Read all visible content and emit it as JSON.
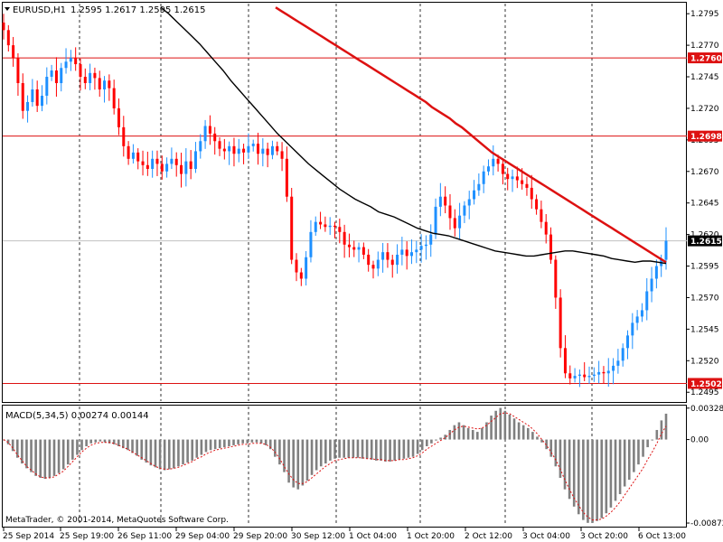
{
  "header": {
    "symbol": "EURUSD,H1",
    "ohlc": "1.2595 1.2617 1.2595 1.2615"
  },
  "copyright": "MetaTrader, © 2001-2014, MetaQuotes Software Corp.",
  "colors": {
    "bull": "#1e90ff",
    "bear": "#ff0000",
    "ma_slow": "#dd1111",
    "ma_fast": "#000000",
    "level_line": "#dd1111",
    "grid": "#000000",
    "histogram": "#808080",
    "signal": "#dd1111",
    "current_tag": "#000000"
  },
  "chart_data": {
    "type": "candlestick",
    "price_axis": {
      "min": 1.2488,
      "max": 1.2803,
      "ticks": [
        "1.2795",
        "1.2770",
        "1.2745",
        "1.2720",
        "1.2695",
        "1.2670",
        "1.2645",
        "1.2620",
        "1.2595",
        "1.2570",
        "1.2545",
        "1.2520",
        "1.2495"
      ]
    },
    "time_axis": {
      "labels": [
        "25 Sep 2014",
        "25 Sep 19:00",
        "26 Sep 11:00",
        "29 Sep 04:00",
        "29 Sep 20:00",
        "30 Sep 12:00",
        "1 Oct 04:00",
        "1 Oct 20:00",
        "2 Oct 12:00",
        "3 Oct 04:00",
        "3 Oct 20:00",
        "6 Oct 13:00"
      ]
    },
    "price_levels": [
      {
        "value": 1.276,
        "label": "1.2760"
      },
      {
        "value": 1.2698,
        "label": "1.2698"
      },
      {
        "value": 1.2502,
        "label": "1.2502"
      }
    ],
    "current_price": {
      "value": 1.2615,
      "label": "1.2615"
    },
    "closes": [
      1.2782,
      1.277,
      1.276,
      1.274,
      1.2718,
      1.2725,
      1.2735,
      1.2722,
      1.273,
      1.2745,
      1.275,
      1.274,
      1.2752,
      1.2757,
      1.276,
      1.2755,
      1.2745,
      1.274,
      1.2748,
      1.2744,
      1.2735,
      1.2742,
      1.2736,
      1.272,
      1.2705,
      1.269,
      1.268,
      1.2685,
      1.2678,
      1.2675,
      1.2672,
      1.268,
      1.2676,
      1.267,
      1.2676,
      1.268,
      1.2675,
      1.2668,
      1.2678,
      1.2672,
      1.2686,
      1.2694,
      1.2706,
      1.27,
      1.2694,
      1.2688,
      1.2686,
      1.269,
      1.2684,
      1.2688,
      1.2685,
      1.269,
      1.2692,
      1.2684,
      1.2688,
      1.2683,
      1.269,
      1.2686,
      1.268,
      1.265,
      1.26,
      1.259,
      1.2585,
      1.2602,
      1.2622,
      1.263,
      1.2628,
      1.2626,
      1.2627,
      1.2626,
      1.2622,
      1.2612,
      1.261,
      1.2608,
      1.261,
      1.2604,
      1.2596,
      1.2593,
      1.26,
      1.2606,
      1.26,
      1.2596,
      1.2604,
      1.2608,
      1.2603,
      1.2606,
      1.2608,
      1.2611,
      1.2612,
      1.262,
      1.2642,
      1.265,
      1.2643,
      1.2633,
      1.2625,
      1.2635,
      1.2643,
      1.2648,
      1.2655,
      1.266,
      1.267,
      1.2674,
      1.268,
      1.2676,
      1.2668,
      1.2664,
      1.2666,
      1.2663,
      1.266,
      1.2657,
      1.2648,
      1.264,
      1.263,
      1.262,
      1.26,
      1.257,
      1.253,
      1.251,
      1.2506,
      1.2508,
      1.2509,
      1.2507,
      1.2508,
      1.2509,
      1.2511,
      1.251,
      1.2512,
      1.2516,
      1.252,
      1.253,
      1.254,
      1.255,
      1.2555,
      1.256,
      1.2575,
      1.2585,
      1.2595,
      1.26,
      1.2615
    ],
    "ma_fast": [
      1.28,
      1.2795,
      1.2789,
      1.2783,
      1.2777,
      1.2771,
      1.2764,
      1.2757,
      1.275,
      1.2742,
      1.2735,
      1.2728,
      1.2721,
      1.2714,
      1.2707,
      1.27,
      1.2694,
      1.2688,
      1.2682,
      1.2676,
      1.2671,
      1.2666,
      1.2661,
      1.2656,
      1.2652,
      1.2648,
      1.2645,
      1.2642,
      1.2638,
      1.2636,
      1.2634,
      1.2631,
      1.2628,
      1.2625,
      1.2623,
      1.2621,
      1.262,
      1.2619,
      1.2617,
      1.2615,
      1.2613,
      1.2611,
      1.2609,
      1.2607,
      1.2606,
      1.2605,
      1.2604,
      1.2603,
      1.2603,
      1.2604,
      1.2605,
      1.2606,
      1.2607,
      1.2607,
      1.2606,
      1.2605,
      1.2604,
      1.2603,
      1.2601,
      1.26,
      1.2599,
      1.2598,
      1.2599,
      1.2599,
      1.2598,
      1.2597
    ],
    "ma_slow": [
      1.28,
      1.2797,
      1.2794,
      1.2791,
      1.2788,
      1.2785,
      1.2782,
      1.2779,
      1.2776,
      1.2773,
      1.277,
      1.2767,
      1.2764,
      1.2761,
      1.2758,
      1.2755,
      1.2752,
      1.2749,
      1.2746,
      1.2743,
      1.274,
      1.2737,
      1.2734,
      1.2731,
      1.2728,
      1.2725,
      1.2721,
      1.2718,
      1.2715,
      1.2712,
      1.2708,
      1.2705,
      1.2701,
      1.2697,
      1.2693,
      1.2689,
      1.2685,
      1.2682,
      1.2679,
      1.2676,
      1.2673,
      1.267,
      1.2667,
      1.2664,
      1.2661,
      1.2658,
      1.2655,
      1.2652,
      1.2649,
      1.2646,
      1.2643,
      1.264,
      1.2637,
      1.2634,
      1.2631,
      1.2628,
      1.2625,
      1.2622,
      1.2619,
      1.2616,
      1.2613,
      1.261,
      1.2607,
      1.2604,
      1.2601,
      1.2598
    ],
    "macd": {
      "title": "MACD(5,34,5) 0.00274 0.00144",
      "axis": {
        "min": -0.009,
        "max": 0.00345,
        "ticks": [
          "0.00328",
          "0.00",
          "-0.00872"
        ]
      },
      "histogram": [
        0.0,
        -0.0005,
        -0.0012,
        -0.0019,
        -0.0025,
        -0.003,
        -0.0034,
        -0.0038,
        -0.004,
        -0.0041,
        -0.004,
        -0.0038,
        -0.0035,
        -0.0031,
        -0.0026,
        -0.0021,
        -0.0016,
        -0.0011,
        -0.0007,
        -0.0004,
        -0.0003,
        -0.0002,
        -0.0003,
        -0.0004,
        -0.0005,
        -0.0007,
        -0.0009,
        -0.0011,
        -0.0014,
        -0.0017,
        -0.0021,
        -0.0024,
        -0.0027,
        -0.0029,
        -0.0031,
        -0.0032,
        -0.0031,
        -0.003,
        -0.0028,
        -0.0026,
        -0.0024,
        -0.0022,
        -0.0019,
        -0.0016,
        -0.0013,
        -0.0011,
        -0.001,
        -0.0009,
        -0.0008,
        -0.0007,
        -0.0006,
        -0.0005,
        -0.0004,
        -0.0004,
        -0.0003,
        -0.0003,
        -0.0004,
        -0.0006,
        -0.001,
        -0.0018,
        -0.0026,
        -0.0034,
        -0.0045,
        -0.005,
        -0.0052,
        -0.0048,
        -0.0043,
        -0.0037,
        -0.0032,
        -0.0028,
        -0.0025,
        -0.0022,
        -0.002,
        -0.0019,
        -0.0019,
        -0.0019,
        -0.0019,
        -0.0019,
        -0.002,
        -0.002,
        -0.0021,
        -0.0022,
        -0.0022,
        -0.0023,
        -0.0023,
        -0.0022,
        -0.0021,
        -0.002,
        -0.0019,
        -0.0018,
        -0.0015,
        -0.0011,
        -0.0007,
        -0.0004,
        -0.0001,
        0.0002,
        0.0005,
        0.001,
        0.0015,
        0.0018,
        0.0015,
        0.0012,
        0.001,
        0.0008,
        0.0012,
        0.0018,
        0.0025,
        0.003,
        0.0033,
        0.003,
        0.0026,
        0.0022,
        0.0018,
        0.0015,
        0.0012,
        0.0008,
        0.0003,
        -0.0003,
        -0.001,
        -0.0018,
        -0.0028,
        -0.004,
        -0.0052,
        -0.0062,
        -0.007,
        -0.0078,
        -0.0084,
        -0.0087,
        -0.0087,
        -0.0085,
        -0.0082,
        -0.0077,
        -0.0071,
        -0.0064,
        -0.0057,
        -0.0049,
        -0.0042,
        -0.0034,
        -0.0026,
        -0.0018,
        -0.0008,
        0.0,
        0.001,
        0.002,
        0.0027
      ],
      "signal": [
        0.0,
        -0.0003,
        -0.0009,
        -0.0016,
        -0.0022,
        -0.0028,
        -0.0032,
        -0.0036,
        -0.0039,
        -0.004,
        -0.004,
        -0.0039,
        -0.0036,
        -0.0033,
        -0.0028,
        -0.0023,
        -0.0018,
        -0.0013,
        -0.0009,
        -0.0006,
        -0.0004,
        -0.0003,
        -0.0003,
        -0.0003,
        -0.0004,
        -0.0006,
        -0.0008,
        -0.001,
        -0.0013,
        -0.0016,
        -0.0019,
        -0.0022,
        -0.0025,
        -0.0028,
        -0.003,
        -0.0031,
        -0.0031,
        -0.003,
        -0.0029,
        -0.0027,
        -0.0025,
        -0.0023,
        -0.002,
        -0.0018,
        -0.0015,
        -0.0013,
        -0.0011,
        -0.001,
        -0.0009,
        -0.0008,
        -0.0007,
        -0.0006,
        -0.0005,
        -0.0005,
        -0.0004,
        -0.0004,
        -0.0004,
        -0.0005,
        -0.0008,
        -0.0013,
        -0.002,
        -0.0028,
        -0.0036,
        -0.0042,
        -0.0046,
        -0.0046,
        -0.0044,
        -0.004,
        -0.0036,
        -0.0032,
        -0.0028,
        -0.0025,
        -0.0022,
        -0.0021,
        -0.002,
        -0.0019,
        -0.0019,
        -0.0019,
        -0.0019,
        -0.002,
        -0.002,
        -0.0021,
        -0.0021,
        -0.0022,
        -0.0022,
        -0.0022,
        -0.0021,
        -0.0021,
        -0.002,
        -0.0019,
        -0.0017,
        -0.0014,
        -0.001,
        -0.0007,
        -0.0004,
        -0.0001,
        0.0002,
        0.0006,
        0.001,
        0.0013,
        0.0014,
        0.0013,
        0.0012,
        0.0011,
        0.0012,
        0.0015,
        0.0019,
        0.0023,
        0.0027,
        0.0028,
        0.0027,
        0.0024,
        0.0021,
        0.0018,
        0.0015,
        0.0011,
        0.0006,
        0.0,
        -0.0006,
        -0.0013,
        -0.0021,
        -0.0031,
        -0.0042,
        -0.0052,
        -0.0061,
        -0.0069,
        -0.0076,
        -0.0081,
        -0.0084,
        -0.0084,
        -0.0083,
        -0.008,
        -0.0076,
        -0.0071,
        -0.0065,
        -0.0058,
        -0.0051,
        -0.0044,
        -0.0037,
        -0.003,
        -0.0021,
        -0.0013,
        -0.0004,
        0.0006,
        0.0014
      ]
    }
  }
}
